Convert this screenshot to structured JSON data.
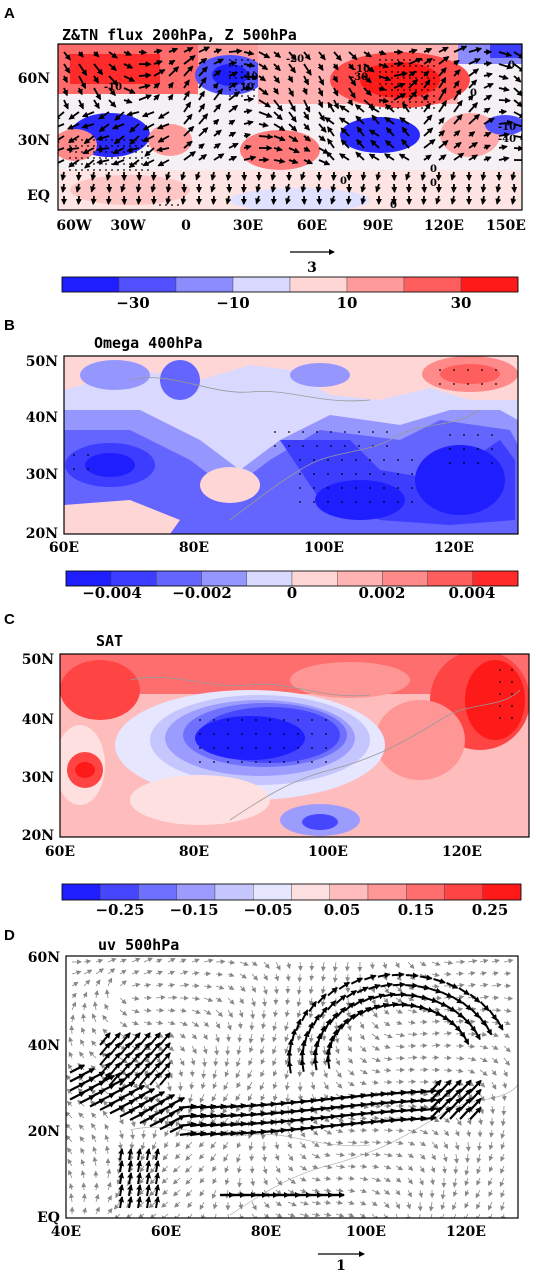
{
  "panels": [
    {
      "letter": "A",
      "title": "Z&TN flux 200hPa, Z 500hPa",
      "lon_ticks": [
        "60W",
        "30W",
        "0",
        "30E",
        "60E",
        "90E",
        "120E",
        "150E"
      ],
      "lat_ticks": [
        "60N",
        "30N",
        "EQ"
      ],
      "ref_vector": "3",
      "cbar_ticks": [
        "−30",
        "−10",
        "10",
        "30"
      ],
      "contour_labels": [
        "-20",
        "-10",
        "-30",
        "-40",
        "10",
        "-10",
        "-10",
        "-40",
        "0",
        "0",
        "0",
        "0",
        "0",
        "0"
      ],
      "colors": [
        "#1e1eff",
        "#5050ff",
        "#8c8cff",
        "#d9d9ff",
        "#ffd6d6",
        "#ff9a9a",
        "#ff5e5e",
        "#ff1a1a"
      ]
    },
    {
      "letter": "B",
      "title": "Omega 400hPa",
      "lon_ticks": [
        "60E",
        "80E",
        "100E",
        "120E"
      ],
      "lat_ticks": [
        "50N",
        "40N",
        "30N",
        "20N"
      ],
      "cbar_ticks": [
        "−0.004",
        "−0.002",
        "0",
        "0.002",
        "0.004"
      ],
      "colors": [
        "#1e1eff",
        "#3d3dff",
        "#6464ff",
        "#9696ff",
        "#d9d9ff",
        "#ffd6d6",
        "#ffb3b3",
        "#ff8a8a",
        "#ff5e5e",
        "#ff2a2a"
      ]
    },
    {
      "letter": "C",
      "title": "SAT",
      "lon_ticks": [
        "60E",
        "80E",
        "100E",
        "120E"
      ],
      "lat_ticks": [
        "50N",
        "40N",
        "30N",
        "20N"
      ],
      "cbar_ticks": [
        "−0.25",
        "−0.15",
        "−0.05",
        "0.05",
        "0.15",
        "0.25"
      ],
      "colors": [
        "#1e1eff",
        "#4646ff",
        "#7070ff",
        "#9c9cff",
        "#c6c6ff",
        "#e6e6ff",
        "#ffe0e0",
        "#ffbcbc",
        "#ff9696",
        "#ff6e6e",
        "#ff4444",
        "#ff1a1a"
      ]
    },
    {
      "letter": "D",
      "title": "uv 500hPa",
      "lon_ticks": [
        "40E",
        "60E",
        "80E",
        "100E",
        "120E"
      ],
      "lat_ticks": [
        "60N",
        "40N",
        "20N",
        "EQ"
      ],
      "ref_vector": "1"
    }
  ]
}
